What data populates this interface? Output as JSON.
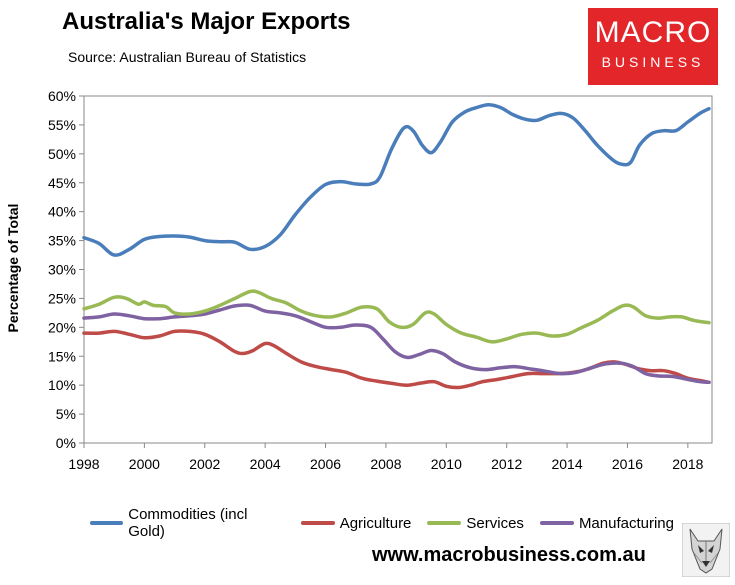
{
  "title": "Australia's Major Exports",
  "source": "Source:  Australian Bureau of Statistics",
  "logo": {
    "line1": "MACRO",
    "line2": "BUSINESS",
    "color": "#e2262a"
  },
  "website": "www.macrobusiness.com.au",
  "chart_data": {
    "type": "line",
    "title": "Australia's Major Exports",
    "xlabel": "",
    "ylabel": "Percentage of Total",
    "xlim": [
      1998,
      2018.8
    ],
    "ylim": [
      0,
      60
    ],
    "grid": false,
    "legend_position": "bottom",
    "x_ticks": [
      1998,
      2000,
      2002,
      2004,
      2006,
      2008,
      2010,
      2012,
      2014,
      2016,
      2018
    ],
    "x_tick_labels": [
      "1998",
      "2000",
      "2002",
      "2004",
      "2006",
      "2008",
      "2010",
      "2012",
      "2014",
      "2016",
      "2018"
    ],
    "y_ticks": [
      0,
      5,
      10,
      15,
      20,
      25,
      30,
      35,
      40,
      45,
      50,
      55,
      60
    ],
    "y_tick_labels": [
      "0%",
      "5%",
      "10%",
      "15%",
      "20%",
      "25%",
      "30%",
      "35%",
      "40%",
      "45%",
      "50%",
      "55%",
      "60%"
    ],
    "series": [
      {
        "name": "Commodities (incl Gold)",
        "color": "#4a7ebb",
        "points": [
          [
            1998.0,
            35.5
          ],
          [
            1998.5,
            34.5
          ],
          [
            1999.0,
            32.5
          ],
          [
            1999.5,
            33.5
          ],
          [
            2000.0,
            35.2
          ],
          [
            2000.5,
            35.7
          ],
          [
            2001.0,
            35.8
          ],
          [
            2001.5,
            35.6
          ],
          [
            2002.0,
            35.0
          ],
          [
            2002.5,
            34.8
          ],
          [
            2003.0,
            34.7
          ],
          [
            2003.5,
            33.5
          ],
          [
            2004.0,
            34.0
          ],
          [
            2004.5,
            36.0
          ],
          [
            2005.0,
            39.5
          ],
          [
            2005.5,
            42.5
          ],
          [
            2006.0,
            44.7
          ],
          [
            2006.5,
            45.2
          ],
          [
            2007.0,
            44.8
          ],
          [
            2007.5,
            44.8
          ],
          [
            2007.8,
            46.0
          ],
          [
            2008.2,
            51.0
          ],
          [
            2008.6,
            54.5
          ],
          [
            2008.9,
            54.0
          ],
          [
            2009.2,
            51.5
          ],
          [
            2009.5,
            50.2
          ],
          [
            2009.8,
            52.0
          ],
          [
            2010.2,
            55.5
          ],
          [
            2010.6,
            57.2
          ],
          [
            2011.0,
            58.0
          ],
          [
            2011.4,
            58.5
          ],
          [
            2011.8,
            58.0
          ],
          [
            2012.2,
            56.8
          ],
          [
            2012.6,
            56.0
          ],
          [
            2013.0,
            55.8
          ],
          [
            2013.4,
            56.6
          ],
          [
            2013.8,
            57.0
          ],
          [
            2014.2,
            56.2
          ],
          [
            2014.6,
            54.0
          ],
          [
            2015.0,
            51.5
          ],
          [
            2015.5,
            49.0
          ],
          [
            2015.8,
            48.2
          ],
          [
            2016.1,
            48.5
          ],
          [
            2016.4,
            51.5
          ],
          [
            2016.8,
            53.5
          ],
          [
            2017.2,
            54.0
          ],
          [
            2017.6,
            54.0
          ],
          [
            2018.0,
            55.5
          ],
          [
            2018.4,
            57.0
          ],
          [
            2018.7,
            57.8
          ]
        ]
      },
      {
        "name": "Agriculture",
        "color": "#be4b48",
        "points": [
          [
            1998.0,
            19.0
          ],
          [
            1998.5,
            19.0
          ],
          [
            1999.0,
            19.3
          ],
          [
            1999.5,
            18.8
          ],
          [
            2000.0,
            18.2
          ],
          [
            2000.5,
            18.5
          ],
          [
            2001.0,
            19.3
          ],
          [
            2001.5,
            19.3
          ],
          [
            2002.0,
            18.8
          ],
          [
            2002.5,
            17.5
          ],
          [
            2003.0,
            15.8
          ],
          [
            2003.3,
            15.5
          ],
          [
            2003.6,
            16.0
          ],
          [
            2004.0,
            17.2
          ],
          [
            2004.3,
            16.8
          ],
          [
            2004.7,
            15.5
          ],
          [
            2005.2,
            14.0
          ],
          [
            2005.7,
            13.2
          ],
          [
            2006.2,
            12.7
          ],
          [
            2006.7,
            12.2
          ],
          [
            2007.2,
            11.2
          ],
          [
            2007.7,
            10.7
          ],
          [
            2008.2,
            10.3
          ],
          [
            2008.7,
            10.0
          ],
          [
            2009.2,
            10.4
          ],
          [
            2009.6,
            10.6
          ],
          [
            2010.0,
            9.8
          ],
          [
            2010.4,
            9.6
          ],
          [
            2010.8,
            10.0
          ],
          [
            2011.2,
            10.6
          ],
          [
            2011.7,
            11.0
          ],
          [
            2012.2,
            11.5
          ],
          [
            2012.7,
            12.0
          ],
          [
            2013.2,
            12.0
          ],
          [
            2013.7,
            12.0
          ],
          [
            2014.2,
            12.2
          ],
          [
            2014.7,
            12.8
          ],
          [
            2015.2,
            13.8
          ],
          [
            2015.6,
            14.0
          ],
          [
            2016.0,
            13.5
          ],
          [
            2016.4,
            12.8
          ],
          [
            2016.8,
            12.5
          ],
          [
            2017.2,
            12.5
          ],
          [
            2017.6,
            12.0
          ],
          [
            2018.0,
            11.2
          ],
          [
            2018.4,
            10.8
          ],
          [
            2018.7,
            10.5
          ]
        ]
      },
      {
        "name": "Services",
        "color": "#98b954",
        "points": [
          [
            1998.0,
            23.2
          ],
          [
            1998.5,
            24.0
          ],
          [
            1999.0,
            25.2
          ],
          [
            1999.4,
            25.0
          ],
          [
            1999.8,
            24.0
          ],
          [
            2000.0,
            24.4
          ],
          [
            2000.3,
            23.8
          ],
          [
            2000.7,
            23.6
          ],
          [
            2001.0,
            22.5
          ],
          [
            2001.5,
            22.3
          ],
          [
            2002.0,
            22.8
          ],
          [
            2002.5,
            23.8
          ],
          [
            2003.0,
            25.0
          ],
          [
            2003.5,
            26.2
          ],
          [
            2003.8,
            26.0
          ],
          [
            2004.2,
            25.0
          ],
          [
            2004.7,
            24.2
          ],
          [
            2005.2,
            22.8
          ],
          [
            2005.7,
            22.0
          ],
          [
            2006.2,
            21.8
          ],
          [
            2006.7,
            22.5
          ],
          [
            2007.2,
            23.5
          ],
          [
            2007.7,
            23.2
          ],
          [
            2008.1,
            21.0
          ],
          [
            2008.5,
            20.0
          ],
          [
            2008.9,
            20.5
          ],
          [
            2009.3,
            22.5
          ],
          [
            2009.6,
            22.3
          ],
          [
            2010.0,
            20.5
          ],
          [
            2010.5,
            19.0
          ],
          [
            2011.0,
            18.3
          ],
          [
            2011.5,
            17.5
          ],
          [
            2012.0,
            18.0
          ],
          [
            2012.5,
            18.8
          ],
          [
            2013.0,
            19.0
          ],
          [
            2013.5,
            18.5
          ],
          [
            2014.0,
            18.8
          ],
          [
            2014.5,
            20.0
          ],
          [
            2015.0,
            21.2
          ],
          [
            2015.5,
            22.8
          ],
          [
            2015.9,
            23.8
          ],
          [
            2016.2,
            23.5
          ],
          [
            2016.6,
            22.0
          ],
          [
            2017.0,
            21.6
          ],
          [
            2017.4,
            21.8
          ],
          [
            2017.8,
            21.8
          ],
          [
            2018.2,
            21.2
          ],
          [
            2018.7,
            20.8
          ]
        ]
      },
      {
        "name": "Manufacturing",
        "color": "#7e62a1",
        "points": [
          [
            1998.0,
            21.6
          ],
          [
            1998.5,
            21.8
          ],
          [
            1999.0,
            22.3
          ],
          [
            1999.5,
            22.0
          ],
          [
            2000.0,
            21.5
          ],
          [
            2000.5,
            21.5
          ],
          [
            2001.0,
            21.8
          ],
          [
            2001.5,
            22.0
          ],
          [
            2002.0,
            22.3
          ],
          [
            2002.5,
            23.0
          ],
          [
            2003.0,
            23.7
          ],
          [
            2003.5,
            23.8
          ],
          [
            2004.0,
            22.8
          ],
          [
            2004.5,
            22.5
          ],
          [
            2005.0,
            22.0
          ],
          [
            2005.5,
            21.0
          ],
          [
            2006.0,
            20.0
          ],
          [
            2006.5,
            20.0
          ],
          [
            2007.0,
            20.4
          ],
          [
            2007.5,
            20.0
          ],
          [
            2007.9,
            18.0
          ],
          [
            2008.3,
            15.8
          ],
          [
            2008.7,
            14.8
          ],
          [
            2009.1,
            15.3
          ],
          [
            2009.5,
            16.0
          ],
          [
            2009.9,
            15.4
          ],
          [
            2010.3,
            14.0
          ],
          [
            2010.8,
            13.0
          ],
          [
            2011.3,
            12.7
          ],
          [
            2011.8,
            13.0
          ],
          [
            2012.3,
            13.2
          ],
          [
            2012.8,
            12.8
          ],
          [
            2013.3,
            12.4
          ],
          [
            2013.8,
            12.0
          ],
          [
            2014.3,
            12.2
          ],
          [
            2014.8,
            13.0
          ],
          [
            2015.3,
            13.7
          ],
          [
            2015.8,
            13.8
          ],
          [
            2016.2,
            13.2
          ],
          [
            2016.6,
            12.0
          ],
          [
            2017.0,
            11.6
          ],
          [
            2017.5,
            11.5
          ],
          [
            2018.0,
            11.0
          ],
          [
            2018.4,
            10.6
          ],
          [
            2018.7,
            10.5
          ]
        ]
      }
    ]
  }
}
